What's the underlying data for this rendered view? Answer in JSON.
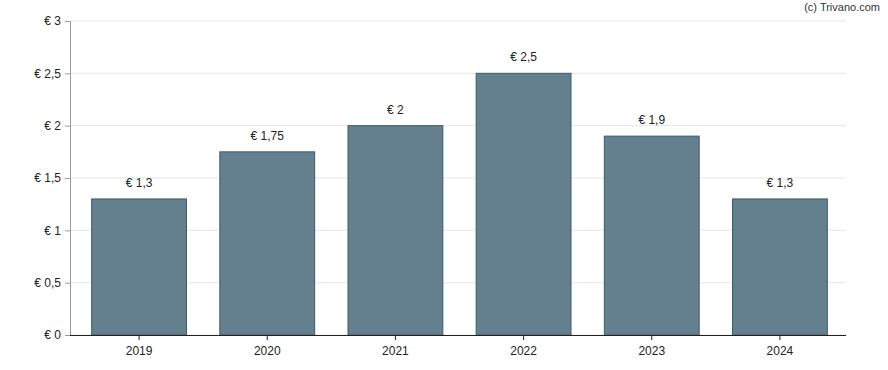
{
  "chart_data": {
    "type": "bar",
    "categories": [
      "2019",
      "2020",
      "2021",
      "2022",
      "2023",
      "2024"
    ],
    "values": [
      1.3,
      1.75,
      2,
      2.5,
      1.9,
      1.3
    ],
    "value_labels": [
      "€ 1,3",
      "€ 1,75",
      "€ 2",
      "€ 2,5",
      "€ 1,9",
      "€ 1,3"
    ],
    "data_labels": true,
    "color": "#64808f",
    "ylim": [
      0,
      3
    ],
    "yticks": [
      {
        "value": 0,
        "label": "€ 0"
      },
      {
        "value": 0.5,
        "label": "€ 0,5"
      },
      {
        "value": 1,
        "label": "€ 1"
      },
      {
        "value": 1.5,
        "label": "€ 1,5"
      },
      {
        "value": 2,
        "label": "€ 2"
      },
      {
        "value": 2.5,
        "label": "€ 2,5"
      },
      {
        "value": 3,
        "label": "€ 3"
      }
    ],
    "grid": true,
    "annotations": [
      "(c) Trivano.com"
    ]
  }
}
